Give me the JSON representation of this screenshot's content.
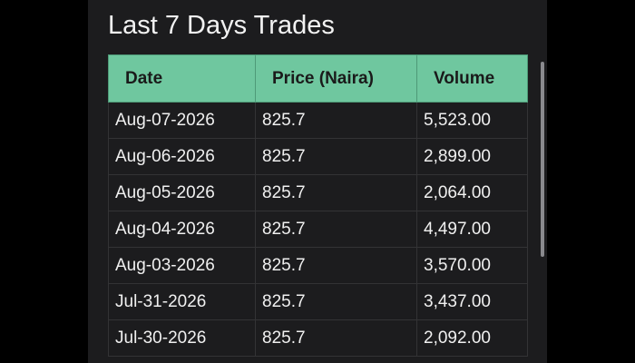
{
  "header": {
    "title": "Last 7 Days Trades"
  },
  "table": {
    "columns": [
      "Date",
      "Price (Naira)",
      "Volume"
    ],
    "rows": [
      [
        "Aug-07-2026",
        "825.7",
        "5,523.00"
      ],
      [
        "Aug-06-2026",
        "825.7",
        "2,899.00"
      ],
      [
        "Aug-05-2026",
        "825.7",
        "2,064.00"
      ],
      [
        "Aug-04-2026",
        "825.7",
        "4,497.00"
      ],
      [
        "Aug-03-2026",
        "825.7",
        "3,570.00"
      ],
      [
        "Jul-31-2026",
        "825.7",
        "3,437.00"
      ],
      [
        "Jul-30-2026",
        "825.7",
        "2,092.00"
      ]
    ]
  }
}
